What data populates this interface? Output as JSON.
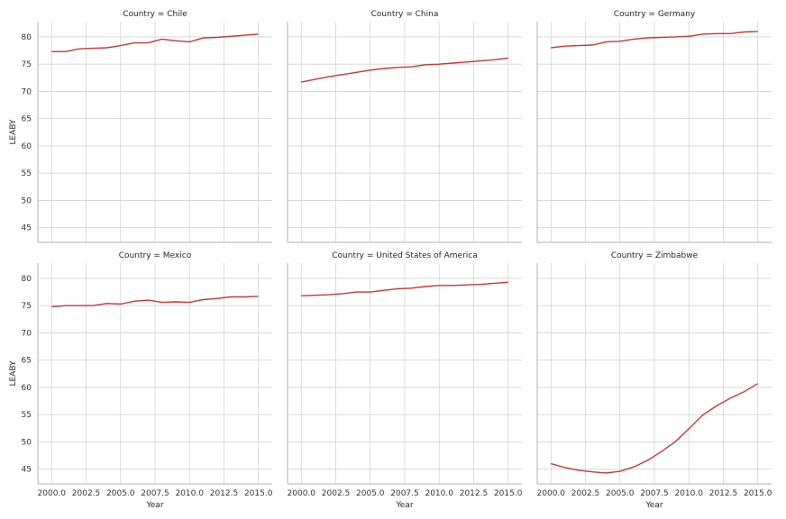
{
  "chart_data": {
    "type": "line",
    "facet_grid": "2 rows x 3 columns, shared axes",
    "xlabel": "Year",
    "ylabel": "LEABY",
    "xlim": [
      1999,
      2016
    ],
    "ylim": [
      42.3,
      82.8
    ],
    "xticks": [
      "2000.0",
      "2002.5",
      "2005.0",
      "2007.5",
      "2010.0",
      "2012.5",
      "2015.0"
    ],
    "yticks": [
      "45",
      "50",
      "55",
      "60",
      "65",
      "70",
      "75",
      "80"
    ],
    "grid": true,
    "line_color": "#c0393b",
    "x": [
      2000,
      2001,
      2002,
      2003,
      2004,
      2005,
      2006,
      2007,
      2008,
      2009,
      2010,
      2011,
      2012,
      2013,
      2014,
      2015
    ],
    "panels": [
      {
        "title": "Country = Chile",
        "values": [
          77.3,
          77.3,
          77.8,
          77.9,
          78.0,
          78.4,
          78.9,
          78.9,
          79.6,
          79.3,
          79.1,
          79.8,
          79.9,
          80.1,
          80.3,
          80.5
        ]
      },
      {
        "title": "Country = China",
        "values": [
          71.7,
          72.2,
          72.7,
          73.1,
          73.5,
          73.9,
          74.2,
          74.4,
          74.5,
          74.9,
          75.0,
          75.2,
          75.4,
          75.6,
          75.8,
          76.1
        ]
      },
      {
        "title": "Country = Germany",
        "values": [
          78.0,
          78.3,
          78.4,
          78.5,
          79.1,
          79.2,
          79.6,
          79.8,
          79.9,
          80.0,
          80.1,
          80.5,
          80.6,
          80.6,
          80.9,
          81.0
        ]
      },
      {
        "title": "Country = Mexico",
        "values": [
          74.8,
          75.0,
          75.0,
          75.0,
          75.4,
          75.3,
          75.8,
          76.0,
          75.6,
          75.7,
          75.6,
          76.1,
          76.3,
          76.6,
          76.6,
          76.7
        ]
      },
      {
        "title": "Country = United States of America",
        "values": [
          76.8,
          76.9,
          77.0,
          77.2,
          77.5,
          77.5,
          77.8,
          78.1,
          78.2,
          78.5,
          78.7,
          78.7,
          78.8,
          78.9,
          79.1,
          79.3
        ]
      },
      {
        "title": "Country = Zimbabwe",
        "values": [
          46.0,
          45.3,
          44.8,
          44.5,
          44.3,
          44.6,
          45.4,
          46.6,
          48.2,
          50.0,
          52.4,
          54.9,
          56.6,
          58.0,
          59.2,
          60.7
        ]
      }
    ]
  }
}
